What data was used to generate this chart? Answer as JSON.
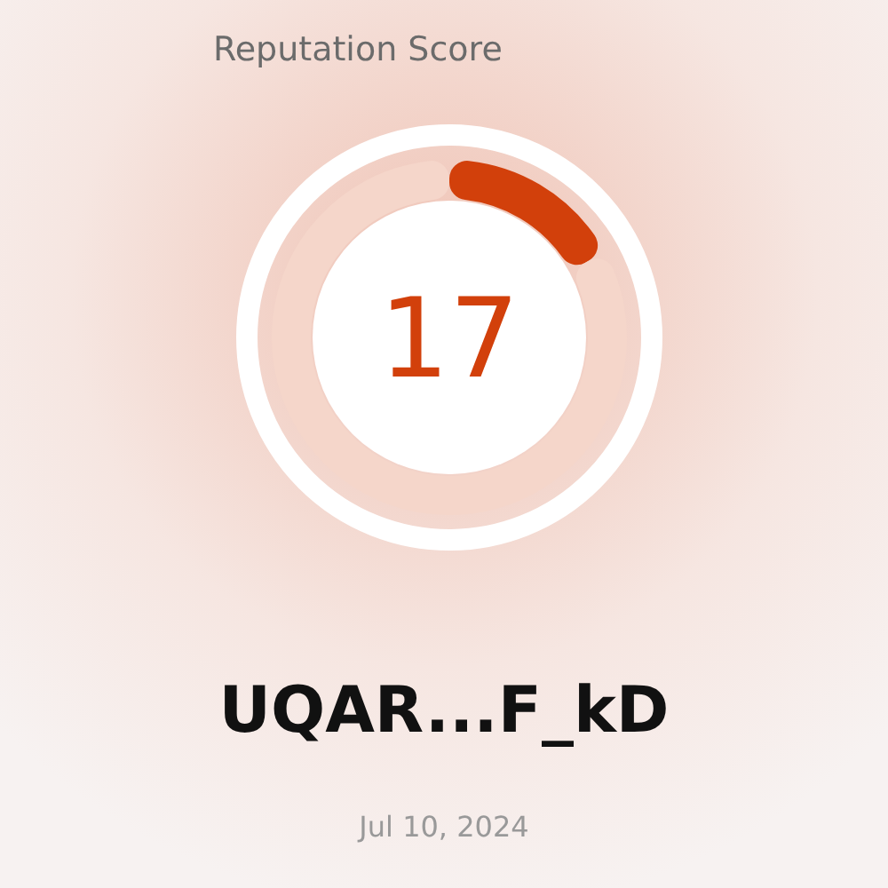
{
  "chart_data": {
    "type": "donut",
    "title": "Reputation Score",
    "categories": [
      null,
      null
    ],
    "values": [
      17,
      83
    ],
    "colors": [
      "#d2400b",
      "#f5d6ca"
    ],
    "annotations": [
      "17",
      "UQAR...F_kD",
      "Jul 10, 2024"
    ]
  }
}
